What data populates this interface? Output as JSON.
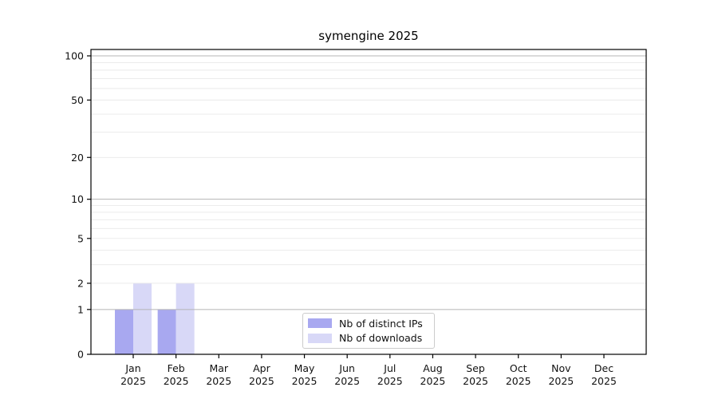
{
  "figure": {
    "background": "#ffffff"
  },
  "chart_data": {
    "type": "bar",
    "title": "symengine 2025",
    "categories": [
      "Jan\n2025",
      "Feb\n2025",
      "Mar\n2025",
      "Apr\n2025",
      "May\n2025",
      "Jun\n2025",
      "Jul\n2025",
      "Aug\n2025",
      "Sep\n2025",
      "Oct\n2025",
      "Nov\n2025",
      "Dec\n2025"
    ],
    "series": [
      {
        "name": "Nb of distinct IPs",
        "color": "#a8a8f0",
        "values": [
          1,
          1,
          0,
          0,
          0,
          0,
          0,
          0,
          0,
          0,
          0,
          0
        ]
      },
      {
        "name": "Nb of downloads",
        "color": "#d8d8f7",
        "values": [
          2,
          2,
          0,
          0,
          0,
          0,
          0,
          0,
          0,
          0,
          0,
          0
        ]
      }
    ],
    "xlabel": "",
    "ylabel": "",
    "yscale": "log1p",
    "ylim": [
      0,
      111
    ],
    "yticks": [
      0,
      1,
      2,
      5,
      10,
      20,
      50,
      100
    ],
    "minor_yticks": [
      3,
      4,
      6,
      7,
      8,
      9,
      30,
      40,
      60,
      70,
      80,
      90
    ],
    "grid": {
      "on": true,
      "major_color": "#b5b5b5",
      "minor_color": "#e9e9e9"
    },
    "axes": {
      "spine_color": "#000000",
      "tick_color": "#000000",
      "label_color": "#111111"
    },
    "legend": {
      "position": "inside lower center",
      "border_color": "#cccccc"
    }
  }
}
